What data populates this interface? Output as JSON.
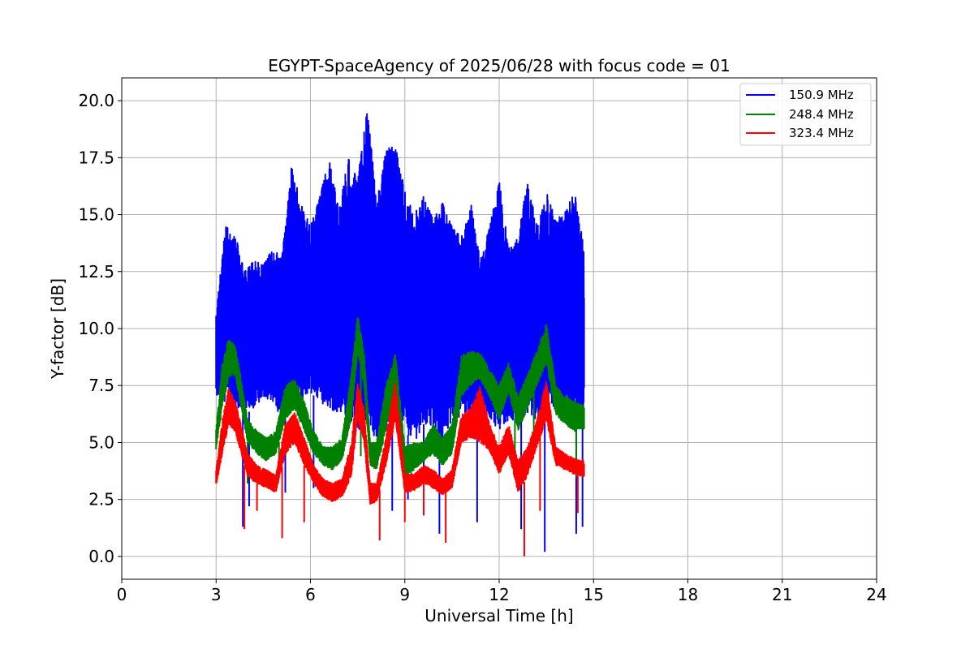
{
  "chart_data": {
    "type": "line",
    "title": "EGYPT-SpaceAgency of 2025/06/28 with focus code = 01",
    "xlabel": "Universal Time [h]",
    "ylabel": "Y-factor [dB]",
    "xlim": [
      0,
      24
    ],
    "ylim": [
      -1,
      21
    ],
    "xticks": [
      0,
      3,
      6,
      9,
      12,
      15,
      18,
      21,
      24
    ],
    "xtick_labels": [
      "0",
      "3",
      "6",
      "9",
      "12",
      "15",
      "18",
      "21",
      "24"
    ],
    "yticks": [
      0,
      2.5,
      5,
      7.5,
      10,
      12.5,
      15,
      17.5,
      20
    ],
    "ytick_labels": [
      "0.0",
      "2.5",
      "5.0",
      "7.5",
      "10.0",
      "12.5",
      "15.0",
      "17.5",
      "20.0"
    ],
    "grid": true,
    "legend_position": "top-right",
    "series": [
      {
        "name": "150.9 MHz",
        "color": "#0000ff",
        "x": [
          3.0,
          3.3,
          3.6,
          3.9,
          4.2,
          4.5,
          4.8,
          5.1,
          5.4,
          5.7,
          6.0,
          6.3,
          6.6,
          6.9,
          7.2,
          7.5,
          7.8,
          8.1,
          8.4,
          8.7,
          9.0,
          9.3,
          9.6,
          9.9,
          10.2,
          10.5,
          10.8,
          11.1,
          11.4,
          11.7,
          12.0,
          12.3,
          12.6,
          12.9,
          13.2,
          13.5,
          13.8,
          14.1,
          14.4,
          14.7
        ],
        "y_min": [
          7.0,
          6.8,
          6.5,
          6.2,
          6.5,
          7.0,
          6.8,
          6.0,
          6.5,
          6.8,
          7.2,
          6.8,
          6.5,
          6.2,
          6.0,
          5.5,
          6.0,
          5.0,
          5.5,
          6.0,
          5.5,
          5.0,
          5.8,
          5.5,
          5.0,
          5.8,
          6.2,
          6.0,
          5.8,
          6.0,
          5.5,
          6.0,
          5.8,
          6.2,
          6.0,
          6.2,
          6.5,
          6.2,
          6.0,
          6.5
        ],
        "y_max": [
          10.8,
          14.5,
          14.2,
          12.5,
          13.0,
          12.8,
          13.5,
          13.2,
          17.2,
          15.5,
          14.5,
          15.8,
          17.5,
          15.2,
          17.5,
          16.5,
          20.0,
          15.5,
          17.8,
          18.2,
          16.0,
          15.0,
          15.8,
          14.8,
          15.5,
          14.5,
          14.0,
          15.5,
          13.0,
          14.5,
          16.5,
          13.5,
          14.0,
          16.5,
          14.5,
          16.0,
          14.8,
          15.2,
          16.0,
          13.5
        ],
        "spikes": [
          [
            3.85,
            1.3
          ],
          [
            4.05,
            2.2
          ],
          [
            5.2,
            2.8
          ],
          [
            6.1,
            3.0
          ],
          [
            8.6,
            2.0
          ],
          [
            9.1,
            2.5
          ],
          [
            9.6,
            1.8
          ],
          [
            10.1,
            1.0
          ],
          [
            11.3,
            1.5
          ],
          [
            12.7,
            1.2
          ],
          [
            13.45,
            0.2
          ],
          [
            14.45,
            1.0
          ],
          [
            14.65,
            1.3
          ]
        ]
      },
      {
        "name": "248.4 MHz",
        "color": "#008000",
        "x": [
          3.0,
          3.2,
          3.4,
          3.6,
          3.8,
          4.0,
          4.3,
          4.6,
          4.9,
          5.2,
          5.5,
          5.8,
          6.1,
          6.4,
          6.7,
          7.0,
          7.3,
          7.5,
          7.7,
          7.9,
          8.1,
          8.4,
          8.7,
          9.0,
          9.3,
          9.6,
          9.9,
          10.2,
          10.5,
          10.8,
          11.1,
          11.4,
          11.7,
          12.0,
          12.3,
          12.6,
          12.9,
          13.2,
          13.5,
          13.8,
          14.1,
          14.4,
          14.7
        ],
        "y_min": [
          4.7,
          6.5,
          7.8,
          8.0,
          6.5,
          5.0,
          4.5,
          4.2,
          4.5,
          6.0,
          6.5,
          5.5,
          4.5,
          4.0,
          3.8,
          4.2,
          6.0,
          9.0,
          7.5,
          4.0,
          3.8,
          5.5,
          7.5,
          3.5,
          3.8,
          4.2,
          4.5,
          4.0,
          4.5,
          7.0,
          7.5,
          7.8,
          7.0,
          6.0,
          7.2,
          5.5,
          6.5,
          7.5,
          8.5,
          6.2,
          5.8,
          5.5,
          5.6
        ],
        "y_max": [
          5.6,
          8.5,
          9.6,
          9.2,
          7.8,
          6.0,
          5.5,
          5.2,
          5.5,
          7.5,
          7.8,
          6.8,
          5.5,
          4.8,
          4.8,
          5.2,
          8.0,
          10.6,
          9.0,
          5.0,
          5.0,
          7.5,
          8.9,
          4.8,
          5.0,
          5.0,
          5.8,
          5.2,
          5.8,
          8.8,
          9.0,
          8.9,
          8.2,
          7.5,
          8.5,
          7.0,
          8.0,
          9.0,
          10.2,
          7.5,
          7.0,
          6.8,
          6.6
        ],
        "spikes": [
          [
            4.0,
            3.2
          ],
          [
            5.0,
            4.2
          ],
          [
            7.6,
            4.4
          ],
          [
            9.2,
            3.0
          ],
          [
            10.1,
            4.5
          ],
          [
            12.5,
            4.5
          ],
          [
            13.1,
            4.8
          ],
          [
            14.45,
            3.5
          ]
        ]
      },
      {
        "name": "323.4 MHz",
        "color": "#ff0000",
        "x": [
          3.0,
          3.2,
          3.4,
          3.6,
          3.8,
          4.0,
          4.3,
          4.6,
          4.9,
          5.2,
          5.5,
          5.8,
          6.1,
          6.4,
          6.7,
          7.0,
          7.3,
          7.5,
          7.7,
          7.9,
          8.1,
          8.4,
          8.7,
          9.0,
          9.3,
          9.6,
          9.9,
          10.2,
          10.5,
          10.8,
          11.1,
          11.4,
          11.7,
          12.0,
          12.3,
          12.6,
          12.9,
          13.2,
          13.5,
          13.8,
          14.1,
          14.4,
          14.7
        ],
        "y_min": [
          3.1,
          4.5,
          5.8,
          5.5,
          4.5,
          3.5,
          3.2,
          3.0,
          2.8,
          4.5,
          5.0,
          4.0,
          3.2,
          2.6,
          2.4,
          2.6,
          3.5,
          6.0,
          5.0,
          2.3,
          2.4,
          4.0,
          6.0,
          2.8,
          2.9,
          3.2,
          3.0,
          2.7,
          3.0,
          5.0,
          5.2,
          5.0,
          4.6,
          3.6,
          4.5,
          2.8,
          3.5,
          4.8,
          6.0,
          4.0,
          3.8,
          3.6,
          3.5
        ],
        "y_max": [
          3.8,
          6.0,
          7.4,
          6.8,
          5.8,
          4.5,
          4.0,
          3.8,
          3.6,
          5.8,
          6.3,
          5.2,
          4.0,
          3.4,
          3.2,
          3.4,
          5.0,
          7.6,
          6.5,
          3.2,
          3.2,
          5.2,
          7.8,
          3.6,
          3.6,
          4.0,
          3.8,
          3.4,
          3.8,
          6.2,
          6.5,
          7.5,
          5.8,
          4.8,
          5.8,
          4.2,
          4.8,
          6.0,
          7.7,
          4.8,
          4.5,
          4.3,
          4.2
        ],
        "spikes": [
          [
            3.9,
            1.2
          ],
          [
            4.3,
            2.0
          ],
          [
            5.1,
            0.8
          ],
          [
            5.8,
            1.5
          ],
          [
            8.2,
            0.7
          ],
          [
            9.0,
            1.5
          ],
          [
            9.6,
            1.8
          ],
          [
            10.3,
            0.6
          ],
          [
            12.8,
            0.0
          ],
          [
            13.3,
            2.0
          ],
          [
            14.5,
            1.9
          ]
        ]
      }
    ]
  }
}
